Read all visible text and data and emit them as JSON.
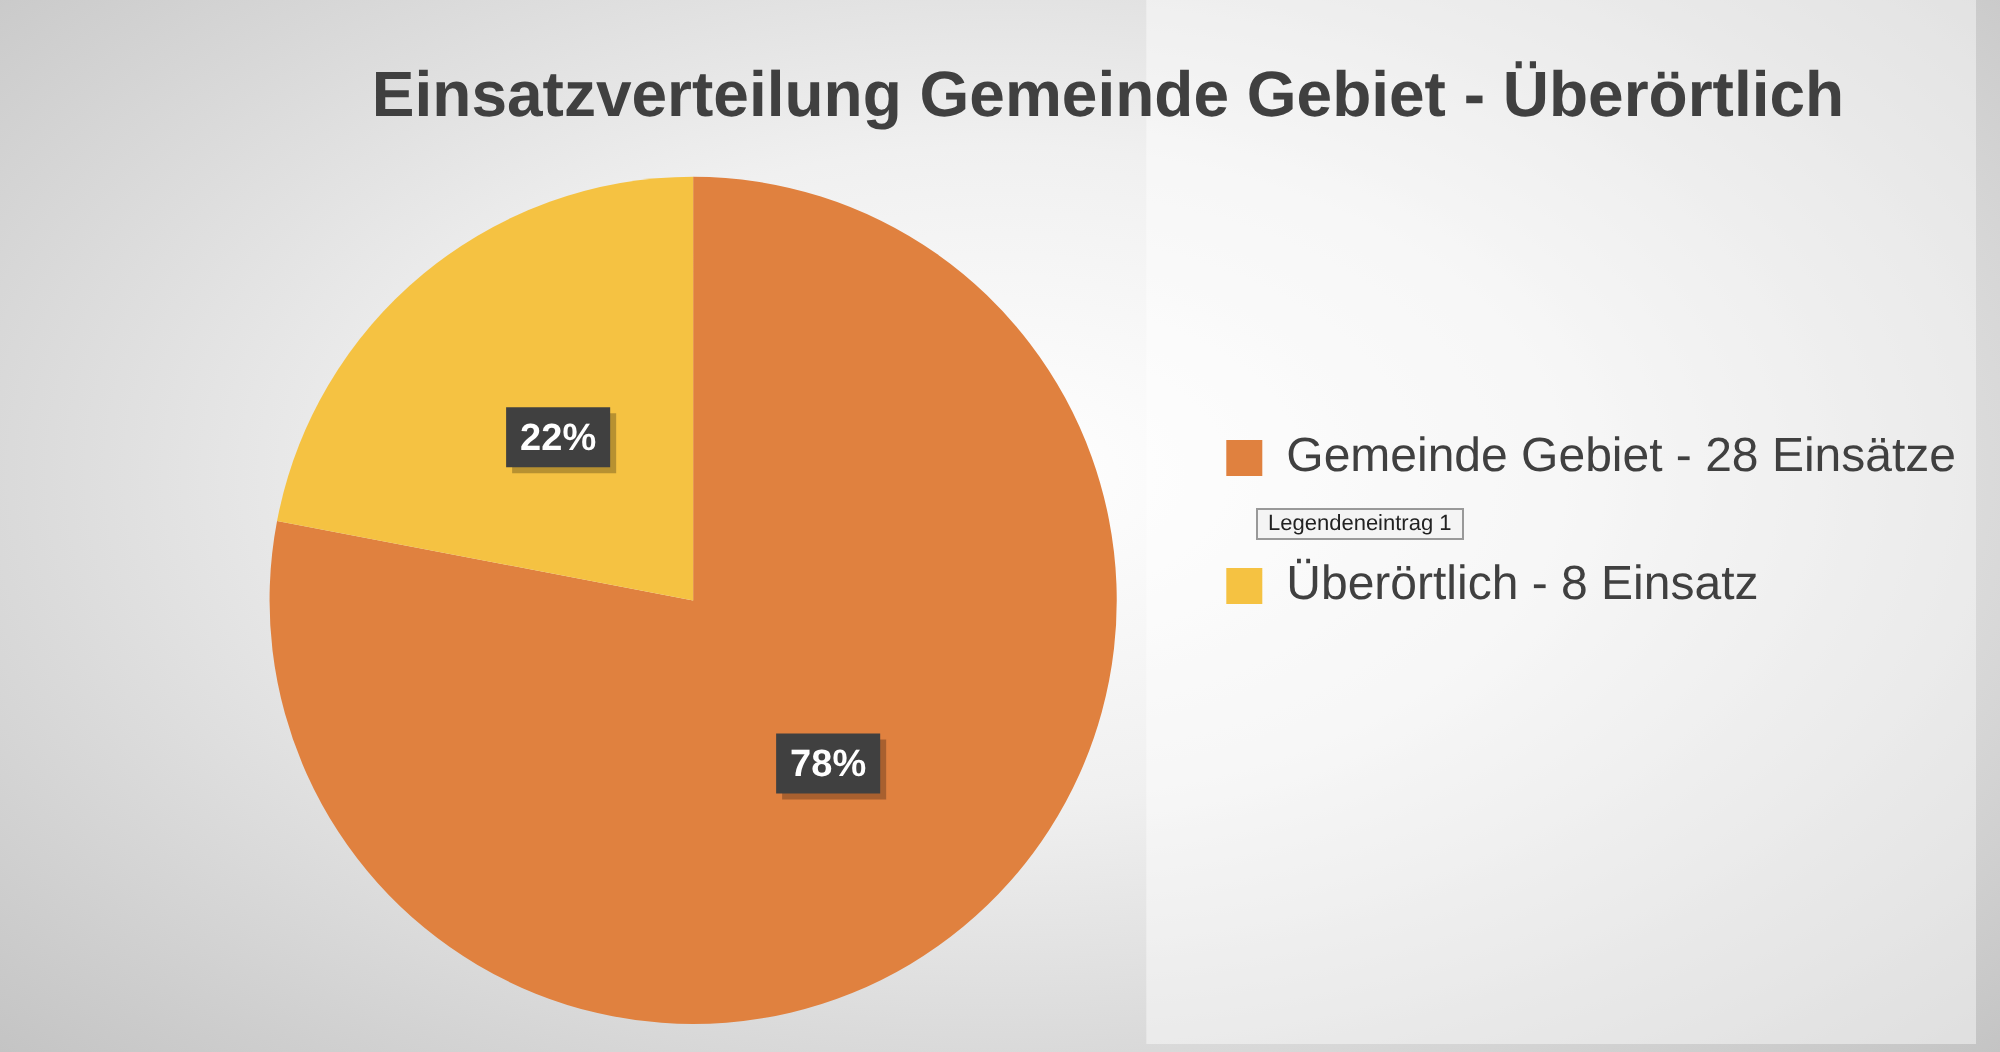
{
  "chart_data": {
    "type": "pie",
    "title": "Einsatzverteilung Gemeinde Gebiet - Überörtlich",
    "categories": [
      "Gemeinde Gebiet - 28 Einsätze",
      "Überörtlich - 8 Einsatz"
    ],
    "values": [
      78,
      22
    ],
    "colors": [
      "#e0813f",
      "#f5c242"
    ],
    "value_labels": [
      "78%",
      "22%"
    ],
    "legend": "right",
    "annotations": [
      "Legendeneintrag 1"
    ]
  }
}
